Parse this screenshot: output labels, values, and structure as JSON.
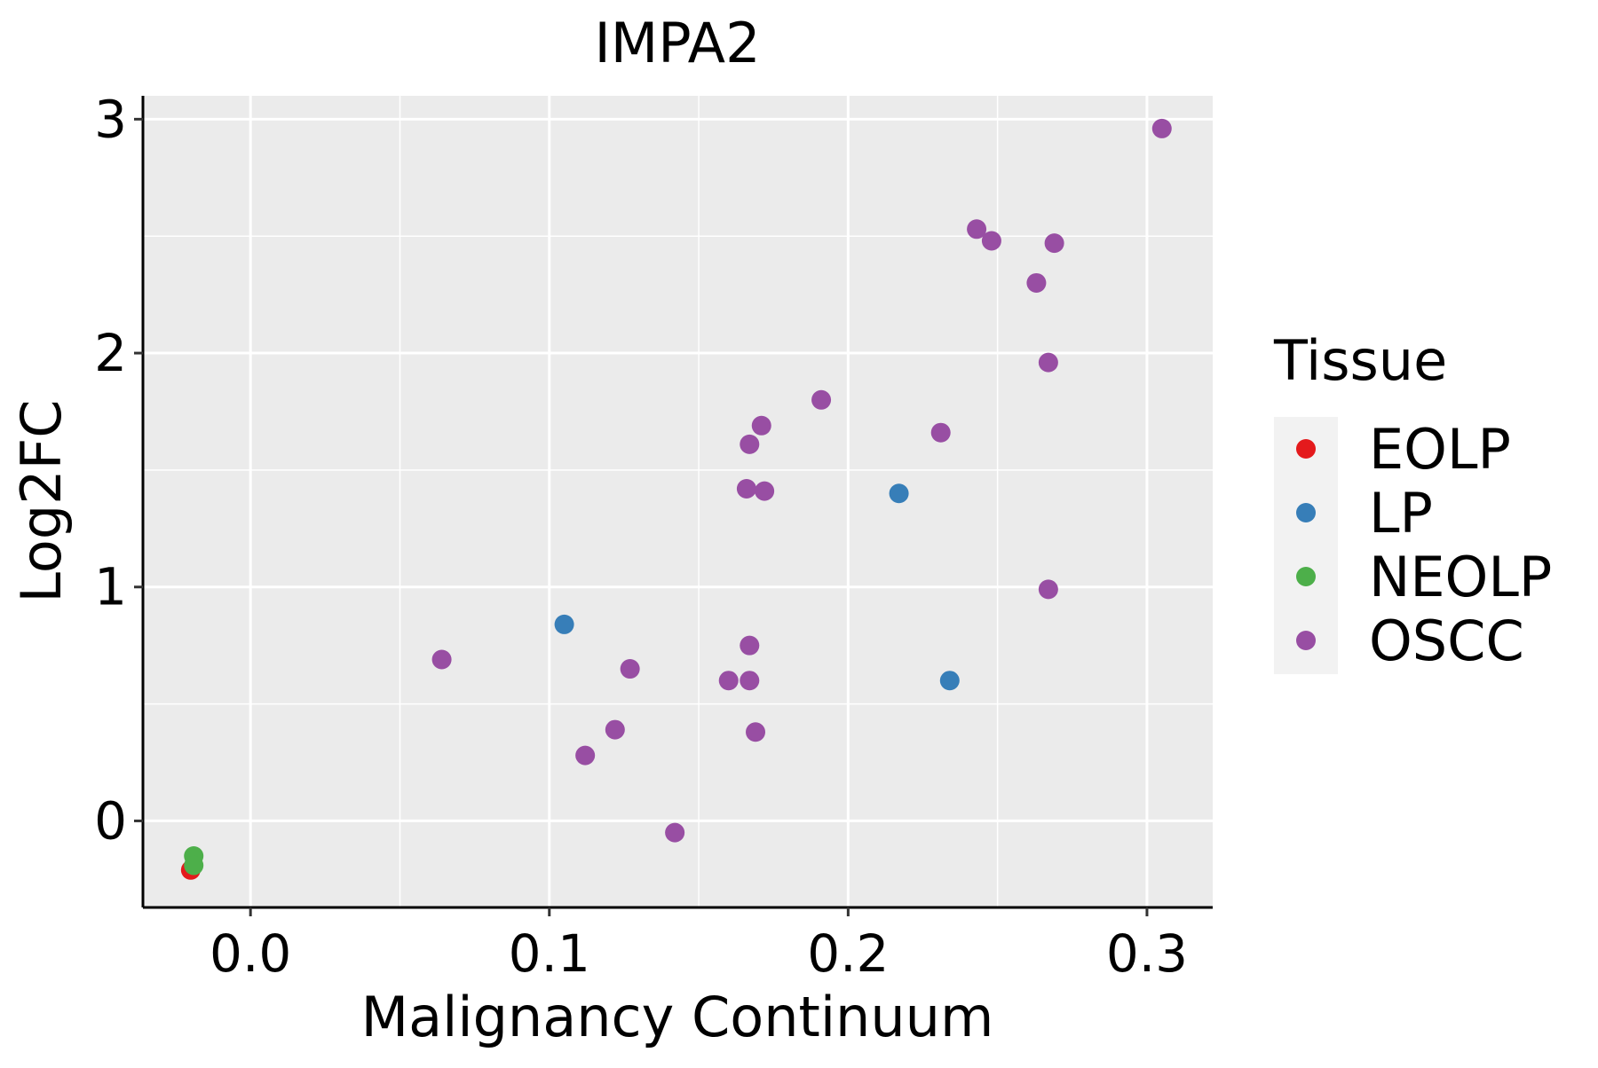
{
  "chart_data": {
    "type": "scatter",
    "title": "IMPA2",
    "xlabel": "Malignancy Continuum",
    "ylabel": "Log2FC",
    "xlim": [
      -0.036,
      0.322
    ],
    "ylim": [
      -0.37,
      3.1
    ],
    "x_ticks": [
      0.0,
      0.1,
      0.2,
      0.3
    ],
    "x_tick_labels": [
      "0.0",
      "0.1",
      "0.2",
      "0.3"
    ],
    "y_ticks": [
      0,
      1,
      2,
      3
    ],
    "y_tick_labels": [
      "0",
      "1",
      "2",
      "3"
    ],
    "grid": true,
    "legend": {
      "title": "Tissue",
      "position": "right"
    },
    "series": [
      {
        "name": "EOLP",
        "color": "#E41A1C",
        "points": [
          {
            "x": -0.02,
            "y": -0.21
          }
        ]
      },
      {
        "name": "LP",
        "color": "#377EB8",
        "points": [
          {
            "x": 0.105,
            "y": 0.84
          },
          {
            "x": 0.217,
            "y": 1.4
          },
          {
            "x": 0.234,
            "y": 0.6
          }
        ]
      },
      {
        "name": "NEOLP",
        "color": "#4DAF4A",
        "points": [
          {
            "x": -0.019,
            "y": -0.15
          },
          {
            "x": -0.019,
            "y": -0.19
          }
        ]
      },
      {
        "name": "OSCC",
        "color": "#984EA3",
        "points": [
          {
            "x": 0.064,
            "y": 0.69
          },
          {
            "x": 0.112,
            "y": 0.28
          },
          {
            "x": 0.122,
            "y": 0.39
          },
          {
            "x": 0.127,
            "y": 0.65
          },
          {
            "x": 0.142,
            "y": -0.05
          },
          {
            "x": 0.16,
            "y": 0.6
          },
          {
            "x": 0.167,
            "y": 0.6
          },
          {
            "x": 0.167,
            "y": 0.75
          },
          {
            "x": 0.169,
            "y": 0.38
          },
          {
            "x": 0.166,
            "y": 1.42
          },
          {
            "x": 0.172,
            "y": 1.41
          },
          {
            "x": 0.167,
            "y": 1.61
          },
          {
            "x": 0.171,
            "y": 1.69
          },
          {
            "x": 0.191,
            "y": 1.8
          },
          {
            "x": 0.231,
            "y": 1.66
          },
          {
            "x": 0.243,
            "y": 2.53
          },
          {
            "x": 0.248,
            "y": 2.48
          },
          {
            "x": 0.263,
            "y": 2.3
          },
          {
            "x": 0.269,
            "y": 2.47
          },
          {
            "x": 0.267,
            "y": 1.96
          },
          {
            "x": 0.267,
            "y": 0.99
          },
          {
            "x": 0.305,
            "y": 2.96
          }
        ]
      }
    ]
  }
}
